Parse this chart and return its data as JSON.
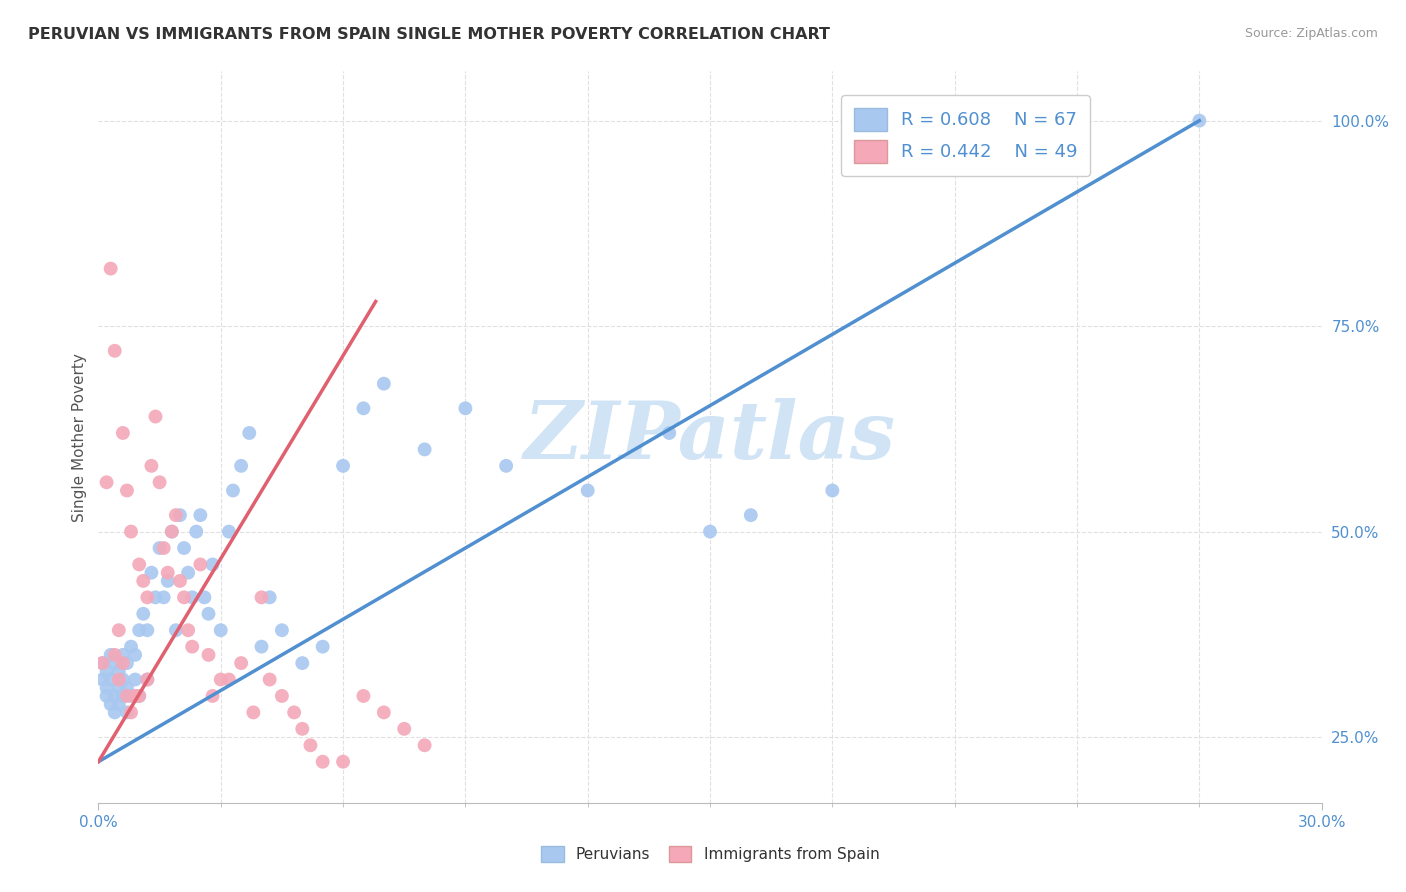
{
  "title": "PERUVIAN VS IMMIGRANTS FROM SPAIN SINGLE MOTHER POVERTY CORRELATION CHART",
  "source": "Source: ZipAtlas.com",
  "ylabel": "Single Mother Poverty",
  "right_yticks": [
    "25.0%",
    "50.0%",
    "75.0%",
    "100.0%"
  ],
  "right_ytick_vals": [
    0.25,
    0.5,
    0.75,
    1.0
  ],
  "xlim": [
    0.0,
    0.3
  ],
  "ylim": [
    0.17,
    1.06
  ],
  "blue_color": "#a8c8f0",
  "pink_color": "#f4a8b8",
  "blue_line_color": "#5090d0",
  "pink_line_color": "#e06070",
  "grid_color": "#e0e0e0",
  "grid_style": "--",
  "legend_R1": "R = 0.608",
  "legend_N1": "N = 67",
  "legend_R2": "R = 0.442",
  "legend_N2": "N = 49",
  "watermark": "ZIPatlas",
  "watermark_color": "#d0e4f5",
  "blue_line_x0": 0.0,
  "blue_line_y0": 0.22,
  "blue_line_x1": 0.27,
  "blue_line_y1": 1.0,
  "pink_line_x0": 0.0,
  "pink_line_y0": 0.22,
  "pink_line_x1": 0.068,
  "pink_line_y1": 0.78,
  "blue_scatter_x": [
    0.001,
    0.001,
    0.002,
    0.002,
    0.002,
    0.003,
    0.003,
    0.003,
    0.004,
    0.004,
    0.004,
    0.005,
    0.005,
    0.005,
    0.006,
    0.006,
    0.006,
    0.007,
    0.007,
    0.007,
    0.008,
    0.008,
    0.009,
    0.009,
    0.01,
    0.01,
    0.011,
    0.012,
    0.012,
    0.013,
    0.014,
    0.015,
    0.016,
    0.017,
    0.018,
    0.019,
    0.02,
    0.021,
    0.022,
    0.023,
    0.024,
    0.025,
    0.026,
    0.027,
    0.028,
    0.03,
    0.032,
    0.033,
    0.035,
    0.037,
    0.04,
    0.042,
    0.045,
    0.05,
    0.055,
    0.06,
    0.065,
    0.07,
    0.08,
    0.09,
    0.1,
    0.12,
    0.14,
    0.15,
    0.16,
    0.18,
    0.27
  ],
  "blue_scatter_y": [
    0.34,
    0.32,
    0.33,
    0.31,
    0.3,
    0.35,
    0.32,
    0.29,
    0.34,
    0.3,
    0.28,
    0.33,
    0.31,
    0.29,
    0.35,
    0.32,
    0.3,
    0.34,
    0.31,
    0.28,
    0.36,
    0.3,
    0.35,
    0.32,
    0.38,
    0.3,
    0.4,
    0.38,
    0.32,
    0.45,
    0.42,
    0.48,
    0.42,
    0.44,
    0.5,
    0.38,
    0.52,
    0.48,
    0.45,
    0.42,
    0.5,
    0.52,
    0.42,
    0.4,
    0.46,
    0.38,
    0.5,
    0.55,
    0.58,
    0.62,
    0.36,
    0.42,
    0.38,
    0.34,
    0.36,
    0.58,
    0.65,
    0.68,
    0.6,
    0.65,
    0.58,
    0.55,
    0.62,
    0.5,
    0.52,
    0.55,
    1.0
  ],
  "pink_scatter_x": [
    0.001,
    0.002,
    0.003,
    0.004,
    0.004,
    0.005,
    0.005,
    0.006,
    0.006,
    0.007,
    0.007,
    0.008,
    0.008,
    0.009,
    0.01,
    0.01,
    0.011,
    0.012,
    0.012,
    0.013,
    0.014,
    0.015,
    0.016,
    0.017,
    0.018,
    0.019,
    0.02,
    0.021,
    0.022,
    0.023,
    0.025,
    0.027,
    0.028,
    0.03,
    0.032,
    0.035,
    0.038,
    0.04,
    0.042,
    0.045,
    0.048,
    0.05,
    0.052,
    0.055,
    0.06,
    0.065,
    0.07,
    0.075,
    0.08
  ],
  "pink_scatter_y": [
    0.34,
    0.56,
    0.82,
    0.72,
    0.35,
    0.38,
    0.32,
    0.62,
    0.34,
    0.55,
    0.3,
    0.5,
    0.28,
    0.3,
    0.46,
    0.3,
    0.44,
    0.42,
    0.32,
    0.58,
    0.64,
    0.56,
    0.48,
    0.45,
    0.5,
    0.52,
    0.44,
    0.42,
    0.38,
    0.36,
    0.46,
    0.35,
    0.3,
    0.32,
    0.32,
    0.34,
    0.28,
    0.42,
    0.32,
    0.3,
    0.28,
    0.26,
    0.24,
    0.22,
    0.22,
    0.3,
    0.28,
    0.26,
    0.24
  ]
}
